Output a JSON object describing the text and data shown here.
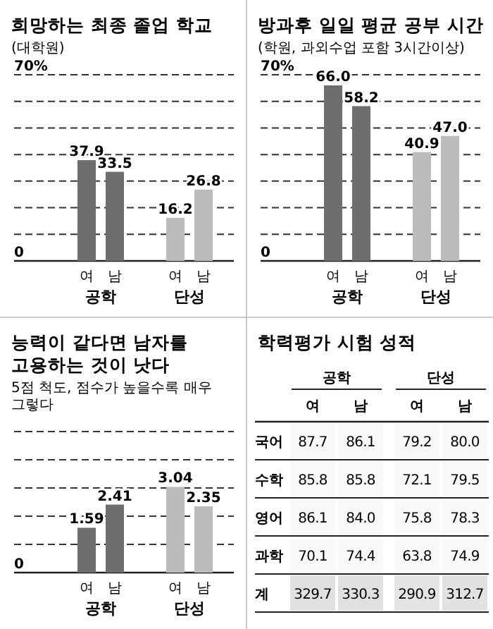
{
  "chart_data": [
    {
      "type": "bar",
      "title": "희망하는 최종 졸업 학교",
      "subtitle": "(대학원)",
      "categories": [
        "여",
        "남",
        "여",
        "남"
      ],
      "values": [
        37.9,
        33.5,
        16.2,
        26.8
      ],
      "value_labels": [
        "37.9",
        "33.5",
        "16.2",
        "26.8"
      ],
      "colors": [
        "#6e6e6e",
        "#6e6e6e",
        "#bcbcbc",
        "#bcbcbc"
      ],
      "ylim": [
        0,
        70
      ],
      "yticks": [
        {
          "value": 0,
          "label": "0"
        },
        {
          "value": 10,
          "label": null
        },
        {
          "value": 20,
          "label": null
        },
        {
          "value": 30,
          "label": null
        },
        {
          "value": 40,
          "label": null
        },
        {
          "value": 50,
          "label": null
        },
        {
          "value": 60,
          "label": null
        },
        {
          "value": 70,
          "label": "70%"
        }
      ],
      "grid": "y",
      "annotations": [
        "공학",
        "단성"
      ]
    },
    {
      "type": "bar",
      "title": "방과후 일일 평균 공부 시간",
      "subtitle": "(학원, 과외수업 포함 3시간이상)",
      "categories": [
        "여",
        "남",
        "여",
        "남"
      ],
      "values": [
        66.0,
        58.2,
        40.9,
        47.0
      ],
      "value_labels": [
        "66.0",
        "58.2",
        "40.9",
        "47.0"
      ],
      "colors": [
        "#6e6e6e",
        "#6e6e6e",
        "#bcbcbc",
        "#bcbcbc"
      ],
      "ylim": [
        0,
        70
      ],
      "yticks": [
        {
          "value": 0,
          "label": "0"
        },
        {
          "value": 10,
          "label": null
        },
        {
          "value": 20,
          "label": null
        },
        {
          "value": 30,
          "label": null
        },
        {
          "value": 40,
          "label": null
        },
        {
          "value": 50,
          "label": null
        },
        {
          "value": 60,
          "label": null
        },
        {
          "value": 70,
          "label": "70%"
        }
      ],
      "grid": "y",
      "annotations": [
        "공학",
        "단성"
      ]
    },
    {
      "type": "bar",
      "title": "능력이 같다면 남자를 고용하는 것이 낫다",
      "subtitle": "5점 척도, 점수가 높을수록 매우 그렇다",
      "categories": [
        "여",
        "남",
        "여",
        "남"
      ],
      "values": [
        1.59,
        2.41,
        3.04,
        2.35
      ],
      "value_labels": [
        "1.59",
        "2.41",
        "3.04",
        "2.35"
      ],
      "colors": [
        "#6e6e6e",
        "#6e6e6e",
        "#bcbcbc",
        "#bcbcbc"
      ],
      "ylim": [
        0,
        5
      ],
      "yticks": [
        {
          "value": 0,
          "label": null
        },
        {
          "value": 1,
          "label": null
        },
        {
          "value": 2,
          "label": null
        },
        {
          "value": 3,
          "label": null
        },
        {
          "value": 4,
          "label": null
        },
        {
          "value": 5,
          "label": null
        }
      ],
      "grid": "y",
      "annotations": [
        "공학",
        "단성",
        "0"
      ]
    },
    {
      "type": "heatmap",
      "title": "학력평가 시험 성적",
      "categories": [
        "여",
        "남",
        "여",
        "남"
      ],
      "y_categories": [
        "국어",
        "수학",
        "영어",
        "과학",
        "계"
      ],
      "cells": [
        [
          87.7,
          86.1,
          79.2,
          80.0
        ],
        [
          85.8,
          85.8,
          72.1,
          79.5
        ],
        [
          86.1,
          84.0,
          75.8,
          78.3
        ],
        [
          70.1,
          74.4,
          63.8,
          74.9
        ],
        [
          329.7,
          330.3,
          290.9,
          312.7
        ]
      ],
      "cell_labels": [
        [
          "87.7",
          "86.1",
          "79.2",
          "80.0"
        ],
        [
          "85.8",
          "85.8",
          "72.1",
          "79.5"
        ],
        [
          "86.1",
          "84.0",
          "75.8",
          "78.3"
        ],
        [
          "70.1",
          "74.4",
          "63.8",
          "74.9"
        ],
        [
          "329.7",
          "330.3",
          "290.9",
          "312.7"
        ]
      ],
      "annotations": [
        "공학",
        "단성"
      ]
    }
  ]
}
